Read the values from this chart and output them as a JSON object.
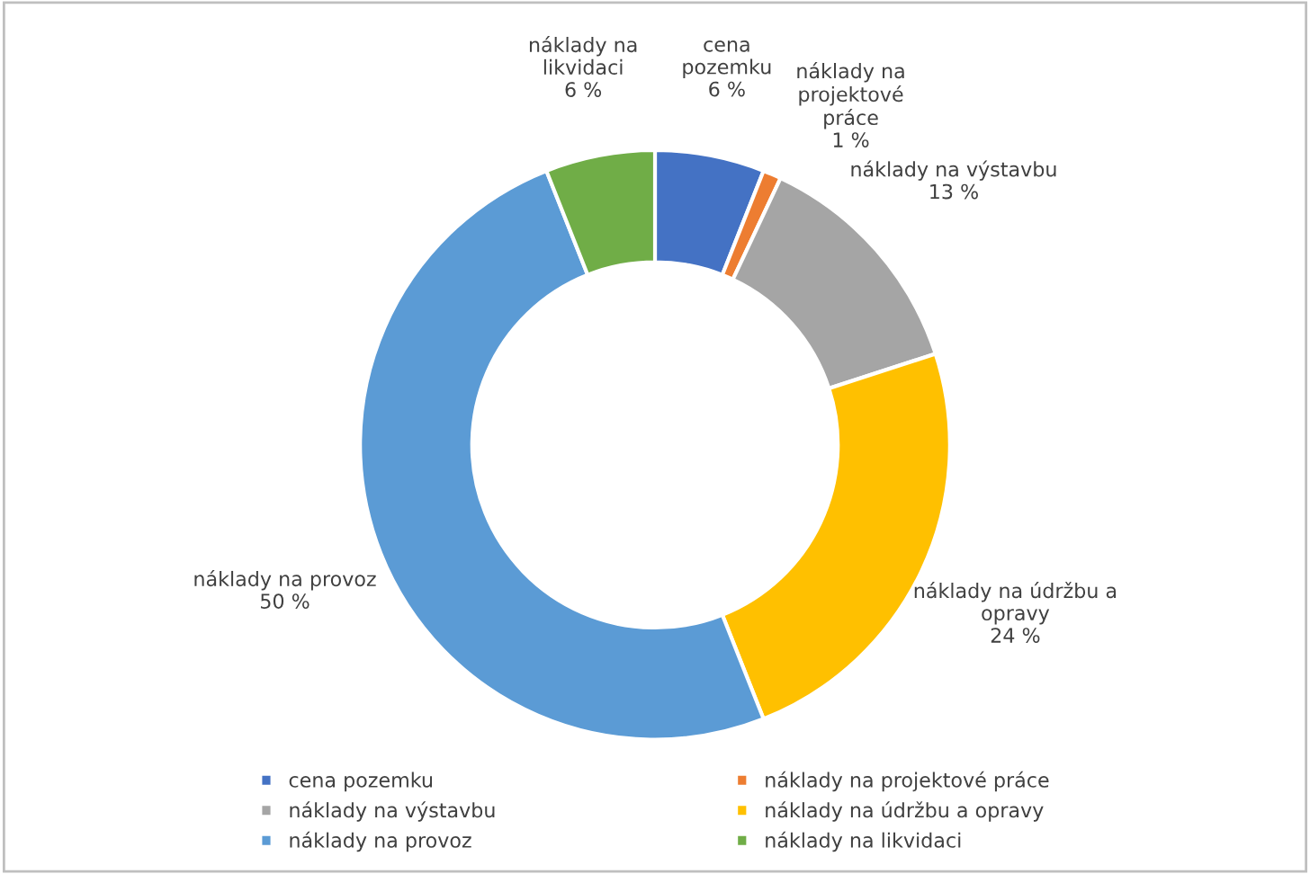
{
  "chart_data": {
    "type": "donut",
    "categories": [
      "cena pozemku",
      "náklady na projektové práce",
      "náklady na výstavbu",
      "náklady na údržbu a opravy",
      "náklady na provoz",
      "náklady na likvidaci"
    ],
    "values": [
      6,
      1,
      13,
      24,
      50,
      6
    ],
    "value_labels": [
      "6 %",
      "1 %",
      "13 %",
      "24 %",
      "50 %",
      "6 %"
    ],
    "colors": [
      "#4472c4",
      "#ed7d31",
      "#a5a5a5",
      "#ffc000",
      "#5b9bd5",
      "#70ad47"
    ],
    "legend": "bottom"
  }
}
